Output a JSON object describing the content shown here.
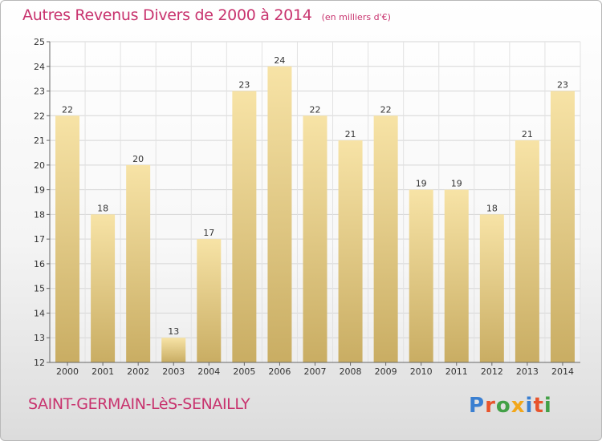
{
  "chart_data": {
    "type": "bar",
    "title": "Autres Revenus Divers de 2000 à 2014",
    "subtitle": "(en milliers d'€)",
    "categories": [
      "2000",
      "2001",
      "2002",
      "2003",
      "2004",
      "2005",
      "2006",
      "2007",
      "2008",
      "2009",
      "2010",
      "2011",
      "2012",
      "2013",
      "2014"
    ],
    "values": [
      22,
      18,
      20,
      13,
      17,
      23,
      24,
      22,
      21,
      22,
      19,
      19,
      18,
      21,
      23
    ],
    "ylim": [
      12,
      25
    ],
    "yticks": [
      12,
      13,
      14,
      15,
      16,
      17,
      18,
      19,
      20,
      21,
      22,
      23,
      24,
      25
    ],
    "grid": true,
    "xlabel": "",
    "ylabel": ""
  },
  "footer": {
    "commune": "SAINT-GERMAIN-LèS-SENAILLY",
    "logo_text": "Proxiti"
  },
  "colors": {
    "title": "#c8336e",
    "bar_top": "#f7e3a6",
    "bar_bottom": "#c9ad63",
    "logo": [
      "#3a7fd1",
      "#e8542c",
      "#43a047",
      "#f2a71b",
      "#3a7fd1",
      "#e8542c",
      "#43a047"
    ]
  }
}
